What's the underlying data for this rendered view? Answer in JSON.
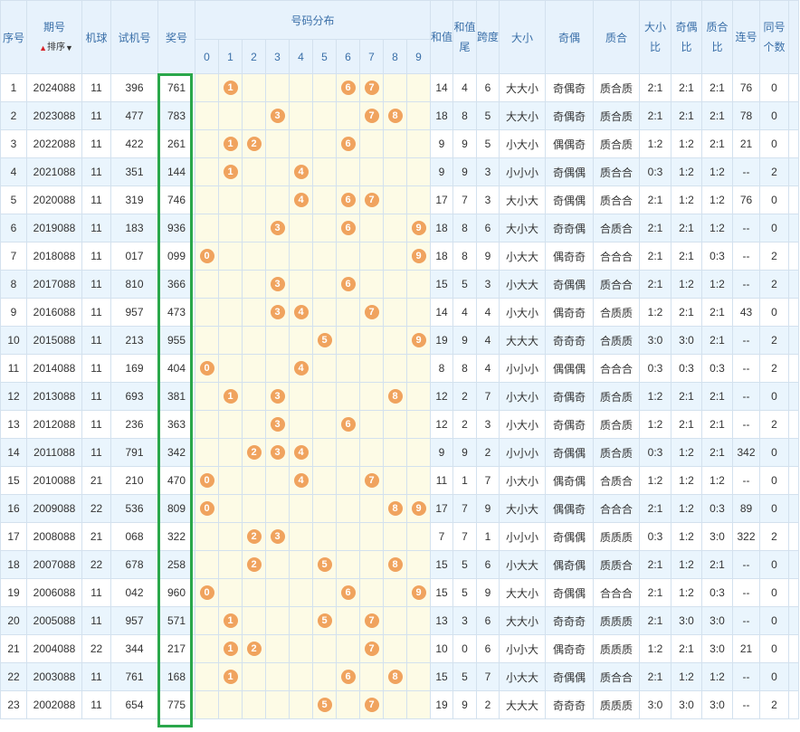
{
  "headers": {
    "seq": "序号",
    "issue": "期号",
    "sort_label": "排序",
    "machine": "机球",
    "test_num": "试机号",
    "prize": "奖号",
    "distribution": "号码分布",
    "digits": [
      "0",
      "1",
      "2",
      "3",
      "4",
      "5",
      "6",
      "7",
      "8",
      "9"
    ],
    "sum": "和值",
    "sum_tail": "和值尾",
    "span": "跨度",
    "big_small": "大小",
    "odd_even": "奇偶",
    "prime_comp": "质合",
    "bs_ratio": "大小比",
    "oe_ratio": "奇偶比",
    "pc_ratio": "质合比",
    "consecutive": "连号",
    "same_count": "同号个数"
  },
  "colors": {
    "accent": "#3a6fa8",
    "ball": "#f0a35e",
    "highlight": "#2aa74a"
  },
  "rows": [
    {
      "seq": "1",
      "issue": "2024088",
      "machine": "11",
      "test": "396",
      "prize": "761",
      "digits": [
        1,
        6,
        7
      ],
      "sum": "14",
      "tail": "4",
      "span": "6",
      "bs": "大大小",
      "oe": "奇偶奇",
      "pc": "质合质",
      "bsr": "2:1",
      "oer": "2:1",
      "pcr": "2:1",
      "con": "76",
      "same": "0"
    },
    {
      "seq": "2",
      "issue": "2023088",
      "machine": "11",
      "test": "477",
      "prize": "783",
      "digits": [
        3,
        7,
        8
      ],
      "sum": "18",
      "tail": "8",
      "span": "5",
      "bs": "大大小",
      "oe": "奇偶奇",
      "pc": "质合质",
      "bsr": "2:1",
      "oer": "2:1",
      "pcr": "2:1",
      "con": "78",
      "same": "0"
    },
    {
      "seq": "3",
      "issue": "2022088",
      "machine": "11",
      "test": "422",
      "prize": "261",
      "digits": [
        1,
        2,
        6
      ],
      "sum": "9",
      "tail": "9",
      "span": "5",
      "bs": "小大小",
      "oe": "偶偶奇",
      "pc": "质合质",
      "bsr": "1:2",
      "oer": "1:2",
      "pcr": "2:1",
      "con": "21",
      "same": "0"
    },
    {
      "seq": "4",
      "issue": "2021088",
      "machine": "11",
      "test": "351",
      "prize": "144",
      "digits": [
        1,
        4
      ],
      "sum": "9",
      "tail": "9",
      "span": "3",
      "bs": "小小小",
      "oe": "奇偶偶",
      "pc": "质合合",
      "bsr": "0:3",
      "oer": "1:2",
      "pcr": "1:2",
      "con": "--",
      "same": "2"
    },
    {
      "seq": "5",
      "issue": "2020088",
      "machine": "11",
      "test": "319",
      "prize": "746",
      "digits": [
        4,
        6,
        7
      ],
      "sum": "17",
      "tail": "7",
      "span": "3",
      "bs": "大小大",
      "oe": "奇偶偶",
      "pc": "质合合",
      "bsr": "2:1",
      "oer": "1:2",
      "pcr": "1:2",
      "con": "76",
      "same": "0"
    },
    {
      "seq": "6",
      "issue": "2019088",
      "machine": "11",
      "test": "183",
      "prize": "936",
      "digits": [
        3,
        6,
        9
      ],
      "sum": "18",
      "tail": "8",
      "span": "6",
      "bs": "大小大",
      "oe": "奇奇偶",
      "pc": "合质合",
      "bsr": "2:1",
      "oer": "2:1",
      "pcr": "1:2",
      "con": "--",
      "same": "0"
    },
    {
      "seq": "7",
      "issue": "2018088",
      "machine": "11",
      "test": "017",
      "prize": "099",
      "digits": [
        0,
        9
      ],
      "sum": "18",
      "tail": "8",
      "span": "9",
      "bs": "小大大",
      "oe": "偶奇奇",
      "pc": "合合合",
      "bsr": "2:1",
      "oer": "2:1",
      "pcr": "0:3",
      "con": "--",
      "same": "2"
    },
    {
      "seq": "8",
      "issue": "2017088",
      "machine": "11",
      "test": "810",
      "prize": "366",
      "digits": [
        3,
        6
      ],
      "sum": "15",
      "tail": "5",
      "span": "3",
      "bs": "小大大",
      "oe": "奇偶偶",
      "pc": "质合合",
      "bsr": "2:1",
      "oer": "1:2",
      "pcr": "1:2",
      "con": "--",
      "same": "2"
    },
    {
      "seq": "9",
      "issue": "2016088",
      "machine": "11",
      "test": "957",
      "prize": "473",
      "digits": [
        3,
        4,
        7
      ],
      "sum": "14",
      "tail": "4",
      "span": "4",
      "bs": "小大小",
      "oe": "偶奇奇",
      "pc": "合质质",
      "bsr": "1:2",
      "oer": "2:1",
      "pcr": "2:1",
      "con": "43",
      "same": "0"
    },
    {
      "seq": "10",
      "issue": "2015088",
      "machine": "11",
      "test": "213",
      "prize": "955",
      "digits": [
        5,
        9
      ],
      "sum": "19",
      "tail": "9",
      "span": "4",
      "bs": "大大大",
      "oe": "奇奇奇",
      "pc": "合质质",
      "bsr": "3:0",
      "oer": "3:0",
      "pcr": "2:1",
      "con": "--",
      "same": "2"
    },
    {
      "seq": "11",
      "issue": "2014088",
      "machine": "11",
      "test": "169",
      "prize": "404",
      "digits": [
        0,
        4
      ],
      "sum": "8",
      "tail": "8",
      "span": "4",
      "bs": "小小小",
      "oe": "偶偶偶",
      "pc": "合合合",
      "bsr": "0:3",
      "oer": "0:3",
      "pcr": "0:3",
      "con": "--",
      "same": "2"
    },
    {
      "seq": "12",
      "issue": "2013088",
      "machine": "11",
      "test": "693",
      "prize": "381",
      "digits": [
        1,
        3,
        8
      ],
      "sum": "12",
      "tail": "2",
      "span": "7",
      "bs": "小大小",
      "oe": "奇偶奇",
      "pc": "质合质",
      "bsr": "1:2",
      "oer": "2:1",
      "pcr": "2:1",
      "con": "--",
      "same": "0"
    },
    {
      "seq": "13",
      "issue": "2012088",
      "machine": "11",
      "test": "236",
      "prize": "363",
      "digits": [
        3,
        6
      ],
      "sum": "12",
      "tail": "2",
      "span": "3",
      "bs": "小大小",
      "oe": "奇偶奇",
      "pc": "质合质",
      "bsr": "1:2",
      "oer": "2:1",
      "pcr": "2:1",
      "con": "--",
      "same": "2"
    },
    {
      "seq": "14",
      "issue": "2011088",
      "machine": "11",
      "test": "791",
      "prize": "342",
      "digits": [
        2,
        3,
        4
      ],
      "sum": "9",
      "tail": "9",
      "span": "2",
      "bs": "小小小",
      "oe": "奇偶偶",
      "pc": "质合质",
      "bsr": "0:3",
      "oer": "1:2",
      "pcr": "2:1",
      "con": "342",
      "same": "0"
    },
    {
      "seq": "15",
      "issue": "2010088",
      "machine": "21",
      "test": "210",
      "prize": "470",
      "digits": [
        0,
        4,
        7
      ],
      "sum": "11",
      "tail": "1",
      "span": "7",
      "bs": "小大小",
      "oe": "偶奇偶",
      "pc": "合质合",
      "bsr": "1:2",
      "oer": "1:2",
      "pcr": "1:2",
      "con": "--",
      "same": "0"
    },
    {
      "seq": "16",
      "issue": "2009088",
      "machine": "22",
      "test": "536",
      "prize": "809",
      "digits": [
        0,
        8,
        9
      ],
      "sum": "17",
      "tail": "7",
      "span": "9",
      "bs": "大小大",
      "oe": "偶偶奇",
      "pc": "合合合",
      "bsr": "2:1",
      "oer": "1:2",
      "pcr": "0:3",
      "con": "89",
      "same": "0"
    },
    {
      "seq": "17",
      "issue": "2008088",
      "machine": "21",
      "test": "068",
      "prize": "322",
      "digits": [
        2,
        3
      ],
      "sum": "7",
      "tail": "7",
      "span": "1",
      "bs": "小小小",
      "oe": "奇偶偶",
      "pc": "质质质",
      "bsr": "0:3",
      "oer": "1:2",
      "pcr": "3:0",
      "con": "322",
      "same": "2"
    },
    {
      "seq": "18",
      "issue": "2007088",
      "machine": "22",
      "test": "678",
      "prize": "258",
      "digits": [
        2,
        5,
        8
      ],
      "sum": "15",
      "tail": "5",
      "span": "6",
      "bs": "小大大",
      "oe": "偶奇偶",
      "pc": "质质合",
      "bsr": "2:1",
      "oer": "1:2",
      "pcr": "2:1",
      "con": "--",
      "same": "0"
    },
    {
      "seq": "19",
      "issue": "2006088",
      "machine": "11",
      "test": "042",
      "prize": "960",
      "digits": [
        0,
        6,
        9
      ],
      "sum": "15",
      "tail": "5",
      "span": "9",
      "bs": "大大小",
      "oe": "奇偶偶",
      "pc": "合合合",
      "bsr": "2:1",
      "oer": "1:2",
      "pcr": "0:3",
      "con": "--",
      "same": "0"
    },
    {
      "seq": "20",
      "issue": "2005088",
      "machine": "11",
      "test": "957",
      "prize": "571",
      "digits": [
        1,
        5,
        7
      ],
      "sum": "13",
      "tail": "3",
      "span": "6",
      "bs": "大大小",
      "oe": "奇奇奇",
      "pc": "质质质",
      "bsr": "2:1",
      "oer": "3:0",
      "pcr": "3:0",
      "con": "--",
      "same": "0"
    },
    {
      "seq": "21",
      "issue": "2004088",
      "machine": "22",
      "test": "344",
      "prize": "217",
      "digits": [
        1,
        2,
        7
      ],
      "sum": "10",
      "tail": "0",
      "span": "6",
      "bs": "小小大",
      "oe": "偶奇奇",
      "pc": "质质质",
      "bsr": "1:2",
      "oer": "2:1",
      "pcr": "3:0",
      "con": "21",
      "same": "0"
    },
    {
      "seq": "22",
      "issue": "2003088",
      "machine": "11",
      "test": "761",
      "prize": "168",
      "digits": [
        1,
        6,
        8
      ],
      "sum": "15",
      "tail": "5",
      "span": "7",
      "bs": "小大大",
      "oe": "奇偶偶",
      "pc": "质合合",
      "bsr": "2:1",
      "oer": "1:2",
      "pcr": "1:2",
      "con": "--",
      "same": "0"
    },
    {
      "seq": "23",
      "issue": "2002088",
      "machine": "11",
      "test": "654",
      "prize": "775",
      "digits": [
        5,
        7
      ],
      "sum": "19",
      "tail": "9",
      "span": "2",
      "bs": "大大大",
      "oe": "奇奇奇",
      "pc": "质质质",
      "bsr": "3:0",
      "oer": "3:0",
      "pcr": "3:0",
      "con": "--",
      "same": "2"
    }
  ]
}
